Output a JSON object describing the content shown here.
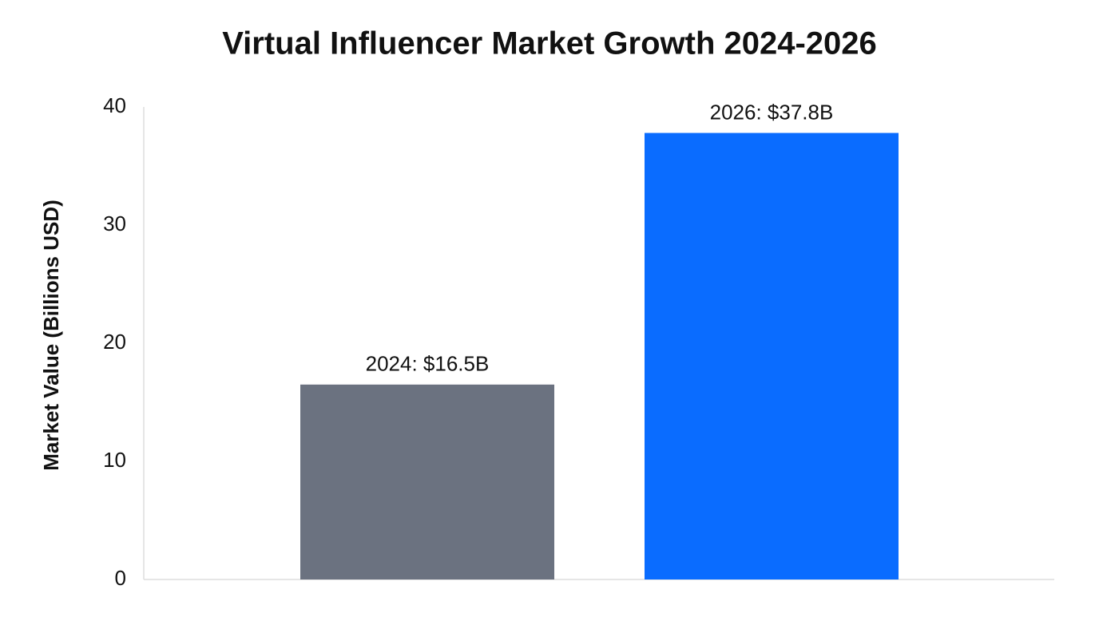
{
  "chart_data": {
    "type": "bar",
    "title": "Virtual Influencer Market Growth 2024-2026",
    "y_label": "Market Value (Billions USD)",
    "categories": [
      null,
      null
    ],
    "values": [
      16.5,
      37.8
    ],
    "value_labels": [
      "2024: $16.5B",
      "2026: $37.8B"
    ],
    "colors": [
      "#6b7280",
      "#0a6cff"
    ],
    "ylim": [
      0,
      40
    ],
    "yticks": [
      0,
      10,
      20,
      30,
      40
    ],
    "grid": false
  }
}
